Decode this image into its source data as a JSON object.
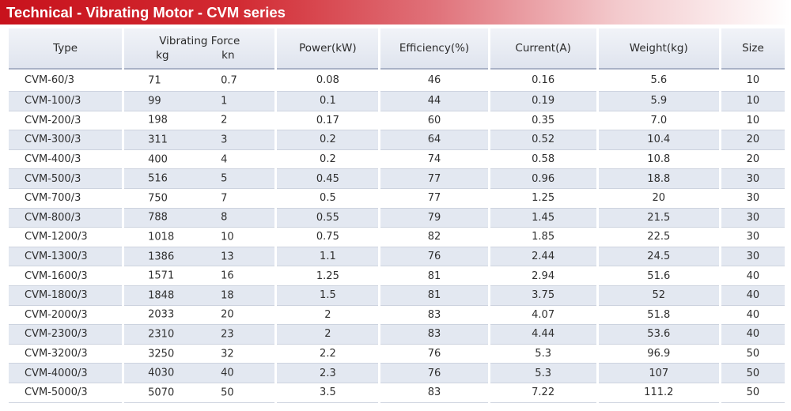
{
  "title": "Technical - Vibrating Motor - CVM series",
  "headers": {
    "type": "Type",
    "vibrating_force": "Vibrating Force",
    "kg": "kg",
    "kn": "kn",
    "power": "Power(kW)",
    "efficiency": "Efficiency(%)",
    "current": "Current(A)",
    "weight": "Weight(kg)",
    "size": "Size"
  },
  "rows": [
    {
      "type": "CVM-60/3",
      "kg": "71",
      "kn": "0.7",
      "power": "0.08",
      "efficiency": "46",
      "current": "0.16",
      "weight": "5.6",
      "size": "10"
    },
    {
      "type": "CVM-100/3",
      "kg": "99",
      "kn": "1",
      "power": "0.1",
      "efficiency": "44",
      "current": "0.19",
      "weight": "5.9",
      "size": "10"
    },
    {
      "type": "CVM-200/3",
      "kg": "198",
      "kn": "2",
      "power": "0.17",
      "efficiency": "60",
      "current": "0.35",
      "weight": "7.0",
      "size": "10"
    },
    {
      "type": "CVM-300/3",
      "kg": "311",
      "kn": "3",
      "power": "0.2",
      "efficiency": "64",
      "current": "0.52",
      "weight": "10.4",
      "size": "20"
    },
    {
      "type": "CVM-400/3",
      "kg": "400",
      "kn": "4",
      "power": "0.2",
      "efficiency": "74",
      "current": "0.58",
      "weight": "10.8",
      "size": "20"
    },
    {
      "type": "CVM-500/3",
      "kg": "516",
      "kn": "5",
      "power": "0.45",
      "efficiency": "77",
      "current": "0.96",
      "weight": "18.8",
      "size": "30"
    },
    {
      "type": "CVM-700/3",
      "kg": "750",
      "kn": "7",
      "power": "0.5",
      "efficiency": "77",
      "current": "1.25",
      "weight": "20",
      "size": "30"
    },
    {
      "type": "CVM-800/3",
      "kg": "788",
      "kn": "8",
      "power": "0.55",
      "efficiency": "79",
      "current": "1.45",
      "weight": "21.5",
      "size": "30"
    },
    {
      "type": "CVM-1200/3",
      "kg": "1018",
      "kn": "10",
      "power": "0.75",
      "efficiency": "82",
      "current": "1.85",
      "weight": "22.5",
      "size": "30"
    },
    {
      "type": "CVM-1300/3",
      "kg": "1386",
      "kn": "13",
      "power": "1.1",
      "efficiency": "76",
      "current": "2.44",
      "weight": "24.5",
      "size": "30"
    },
    {
      "type": "CVM-1600/3",
      "kg": "1571",
      "kn": "16",
      "power": "1.25",
      "efficiency": "81",
      "current": "2.94",
      "weight": "51.6",
      "size": "40"
    },
    {
      "type": "CVM-1800/3",
      "kg": "1848",
      "kn": "18",
      "power": "1.5",
      "efficiency": "81",
      "current": "3.75",
      "weight": "52",
      "size": "40"
    },
    {
      "type": "CVM-2000/3",
      "kg": "2033",
      "kn": "20",
      "power": "2",
      "efficiency": "83",
      "current": "4.07",
      "weight": "51.8",
      "size": "40"
    },
    {
      "type": "CVM-2300/3",
      "kg": "2310",
      "kn": "23",
      "power": "2",
      "efficiency": "83",
      "current": "4.44",
      "weight": "53.6",
      "size": "40"
    },
    {
      "type": "CVM-3200/3",
      "kg": "3250",
      "kn": "32",
      "power": "2.2",
      "efficiency": "76",
      "current": "5.3",
      "weight": "96.9",
      "size": "50"
    },
    {
      "type": "CVM-4000/3",
      "kg": "4030",
      "kn": "40",
      "power": "2.3",
      "efficiency": "76",
      "current": "5.3",
      "weight": "107",
      "size": "50"
    },
    {
      "type": "CVM-5000/3",
      "kg": "5070",
      "kn": "50",
      "power": "3.5",
      "efficiency": "83",
      "current": "7.22",
      "weight": "111.2",
      "size": "50"
    }
  ]
}
